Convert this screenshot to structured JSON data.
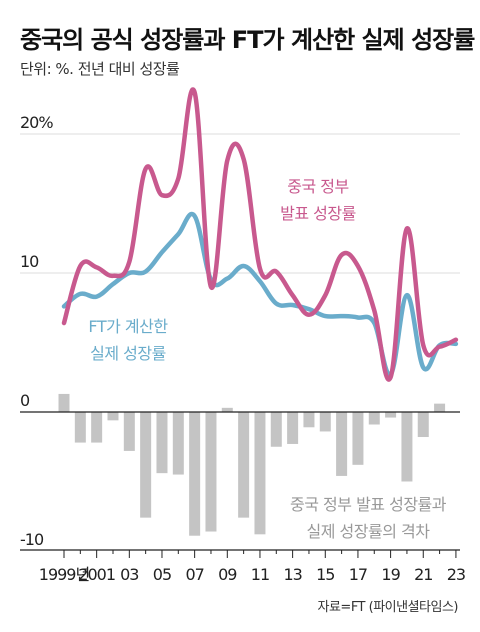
{
  "title": "중국의 공식 성장률과 FT가 계산한 실제 성장률",
  "subtitle": "단위: %. 전년 대비 성장률",
  "source": "자료=FT (파이낸셜타임스)",
  "colors": {
    "official": "#c8598e",
    "ft": "#6aaccb",
    "gap": "#c4c4c4",
    "axis": "#222222",
    "grid": "#dddddd"
  },
  "chart_data": {
    "type": "line",
    "x": [
      1999,
      2000,
      2001,
      2002,
      2003,
      2004,
      2005,
      2006,
      2007,
      2008,
      2009,
      2010,
      2011,
      2012,
      2013,
      2014,
      2015,
      2016,
      2017,
      2018,
      2019,
      2020,
      2021,
      2022,
      2023
    ],
    "x_tick_labels": [
      "1999년",
      "2001",
      "03",
      "05",
      "07",
      "09",
      "11",
      "13",
      "15",
      "17",
      "19",
      "21",
      "23"
    ],
    "x_tick_values": [
      1999,
      2001,
      2003,
      2005,
      2007,
      2009,
      2011,
      2013,
      2015,
      2017,
      2019,
      2021,
      2023
    ],
    "ylim": [
      -10,
      22
    ],
    "y_ticks": [
      {
        "value": 20,
        "label": "20%"
      },
      {
        "value": 10,
        "label": "10"
      },
      {
        "value": 0,
        "label": "0"
      },
      {
        "value": -10,
        "label": "-10"
      }
    ],
    "series": [
      {
        "name": "중국 정부 발표 성장률",
        "label_lines": [
          "중국 정부",
          "발표 성장률"
        ],
        "values": [
          6.4,
          10.5,
          10.4,
          9.8,
          10.8,
          17.5,
          15.6,
          16.8,
          23.0,
          9.0,
          18.1,
          18.2,
          10.3,
          10.1,
          8.4,
          7.0,
          8.4,
          11.3,
          10.5,
          7.3,
          2.5,
          13.2,
          4.8,
          4.7,
          5.2
        ]
      },
      {
        "name": "FT가 계산한 실제 성장률",
        "label_lines": [
          "FT가 계산한",
          "실제 성장률"
        ],
        "values": [
          7.6,
          8.5,
          8.3,
          9.2,
          10.0,
          10.1,
          11.5,
          12.8,
          14.1,
          9.5,
          9.6,
          10.5,
          9.4,
          7.8,
          7.7,
          7.4,
          6.9,
          6.9,
          6.8,
          6.4,
          2.7,
          8.4,
          3.2,
          4.8,
          4.9
        ]
      },
      {
        "name": "중국 정부 발표 성장률과 실제 성장률의 격차",
        "label_lines": [
          "중국 정부 발표 성장률과",
          "실제 성장률의 격차"
        ],
        "type": "bar",
        "values": [
          1.3,
          -2.2,
          -2.2,
          -0.6,
          -2.8,
          -7.6,
          -4.4,
          -4.5,
          -8.9,
          -8.6,
          0.3,
          -7.6,
          -8.8,
          -2.5,
          -2.3,
          -1.1,
          -1.4,
          -4.6,
          -3.8,
          -0.9,
          -0.4,
          -5.0,
          -1.8,
          0.6,
          0
        ]
      }
    ]
  }
}
